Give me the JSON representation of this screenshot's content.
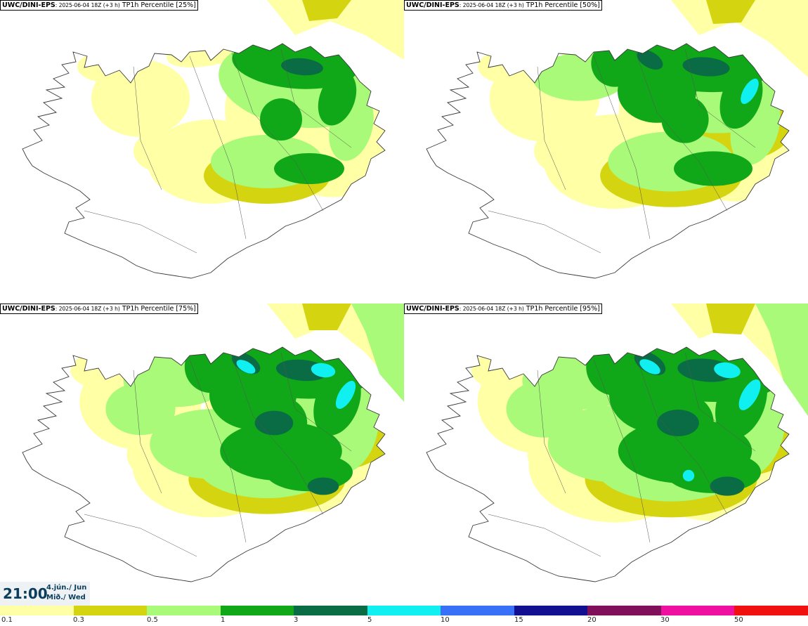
{
  "panels": [
    {
      "model": "UWC/DINI-EPS",
      "run": ": 2025-06-04 18Z (+3 h)",
      "label": "TP1h Percentile [25%]",
      "intensity": 1
    },
    {
      "model": "UWC/DINI-EPS",
      "run": ": 2025-06-04 18Z (+3 h)",
      "label": "TP1h Percentile [50%]",
      "intensity": 2
    },
    {
      "model": "UWC/DINI-EPS",
      "run": ": 2025-06-04 18Z (+3 h)",
      "label": "TP1h Percentile [75%]",
      "intensity": 3
    },
    {
      "model": "UWC/DINI-EPS",
      "run": ": 2025-06-04 18Z (+3 h)",
      "label": "TP1h Percentile [95%]",
      "intensity": 4
    }
  ],
  "valid_time": {
    "time": "21:00",
    "date_line1": "4.jún./ Jun",
    "date_line2": "Mið./ Wed"
  },
  "colorbar": {
    "colors": [
      "#ffffa6",
      "#d4d410",
      "#a8fa78",
      "#10a818",
      "#0a6c44",
      "#10f0f0",
      "#3870f8",
      "#101090",
      "#80105a",
      "#f010a0",
      "#f01010"
    ],
    "ticks": [
      "0.1",
      "0.3",
      "0.5",
      "1",
      "3",
      "5",
      "10",
      "15",
      "20",
      "30",
      "50"
    ]
  },
  "map": {
    "colors": {
      "outline": "#3a3a3a",
      "yellow": "#ffffa6",
      "olive": "#d4d410",
      "lightgreen": "#a8fa78",
      "green": "#10a818",
      "darkgreen": "#0a6c44",
      "cyan": "#10f0f0"
    }
  }
}
